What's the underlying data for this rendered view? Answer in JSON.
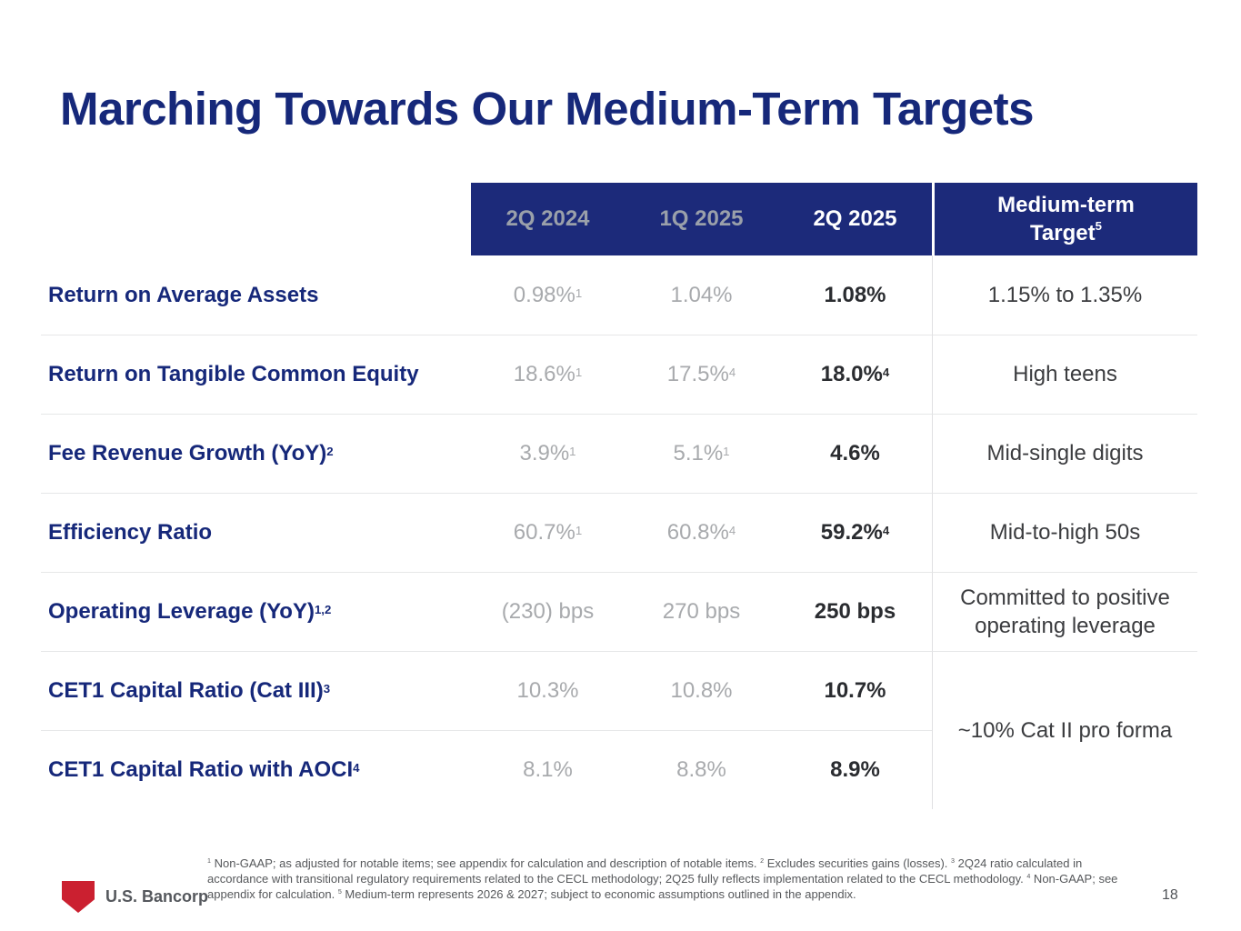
{
  "slide": {
    "title": "Marching Towards Our Medium-Term Targets",
    "page_number": "18"
  },
  "logo": {
    "text": "U.S. Bancorp",
    "shield_color": "#cb2030"
  },
  "colors": {
    "navy_header_bg": "#1c2a7a",
    "navy_text": "#16287a",
    "gray_value": "#a8aaad",
    "current_value": "#2a2c30",
    "target_text": "#3b3c3f",
    "separator": "#e6e7e8"
  },
  "table": {
    "columns": [
      "2Q 2024",
      "1Q 2025",
      "2Q 2025"
    ],
    "target_header": {
      "line1": "Medium-term",
      "line2": "Target",
      "sup": "5"
    },
    "rows": [
      {
        "label": "Return on Average Assets",
        "values": [
          {
            "v": "0.98%",
            "sup": "1"
          },
          {
            "v": "1.04%"
          },
          {
            "v": "1.08%"
          }
        ],
        "target": "1.15% to 1.35%"
      },
      {
        "label": "Return on Tangible Common Equity",
        "values": [
          {
            "v": "18.6%",
            "sup": "1"
          },
          {
            "v": "17.5%",
            "sup": "4"
          },
          {
            "v": "18.0%",
            "sup": "4"
          }
        ],
        "target": "High teens"
      },
      {
        "label": "Fee Revenue Growth (YoY)",
        "label_sup": "2",
        "values": [
          {
            "v": "3.9%",
            "sup": "1"
          },
          {
            "v": "5.1%",
            "sup": "1"
          },
          {
            "v": "4.6%"
          }
        ],
        "target": "Mid-single digits"
      },
      {
        "label": "Efficiency Ratio",
        "values": [
          {
            "v": "60.7%",
            "sup": "1"
          },
          {
            "v": "60.8%",
            "sup": "4"
          },
          {
            "v": "59.2%",
            "sup": "4"
          }
        ],
        "target": "Mid-to-high 50s"
      },
      {
        "label": "Operating Leverage (YoY)",
        "label_sup": "1,2",
        "values": [
          {
            "v": "(230) bps"
          },
          {
            "v": "270 bps"
          },
          {
            "v": "250 bps"
          }
        ],
        "target": "Committed to positive operating leverage"
      },
      {
        "label": "CET1 Capital Ratio (Cat III)",
        "label_sup": "3",
        "values": [
          {
            "v": "10.3%"
          },
          {
            "v": "10.8%"
          },
          {
            "v": "10.7%"
          }
        ],
        "target_merged": "~10% Cat II pro forma"
      },
      {
        "label": "CET1 Capital Ratio with AOCI",
        "label_sup": "4",
        "values": [
          {
            "v": "8.1%"
          },
          {
            "v": "8.8%"
          },
          {
            "v": "8.9%"
          }
        ]
      }
    ]
  },
  "footnote": {
    "segments": [
      {
        "sup": "1",
        "text": " Non-GAAP; as adjusted for notable items; see appendix for calculation and description of notable items. "
      },
      {
        "sup": "2",
        "text": " Excludes securities gains (losses). "
      },
      {
        "sup": "3",
        "text": " 2Q24 ratio calculated in accordance with transitional regulatory requirements related to the CECL methodology; 2Q25 fully reflects implementation related to the CECL methodology. "
      },
      {
        "sup": "4",
        "text": " Non-GAAP; see appendix for calculation. "
      },
      {
        "sup": "5",
        "text": " Medium-term represents 2026 & 2027; subject to economic assumptions outlined in the appendix."
      }
    ]
  }
}
